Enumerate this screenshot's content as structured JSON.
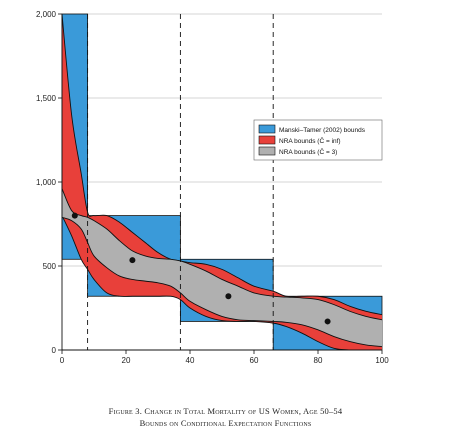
{
  "chart_data": {
    "type": "area",
    "title": "",
    "xlabel": "",
    "ylabel": "",
    "xlim": [
      0,
      100
    ],
    "ylim": [
      0,
      2000
    ],
    "x_ticks": [
      0,
      20,
      40,
      60,
      80,
      100
    ],
    "y_ticks": [
      0,
      500,
      1000,
      1500,
      2000
    ],
    "y_tick_labels": [
      "0",
      "500",
      "1,000",
      "1,500",
      "2,000"
    ],
    "grid": "horizontal",
    "legend_position": "right",
    "vertical_dashed_lines_x": [
      8,
      37,
      66
    ],
    "series": [
      {
        "name": "Manski–Tamer (2002) bounds",
        "color": "#3a9ad9",
        "steps": [
          {
            "x": [
              0,
              8
            ],
            "lower": 540,
            "upper": 2000
          },
          {
            "x": [
              8,
              37
            ],
            "lower": 320,
            "upper": 800
          },
          {
            "x": [
              37,
              66
            ],
            "lower": 170,
            "upper": 540
          },
          {
            "x": [
              66,
              100
            ],
            "lower": 0,
            "upper": 320
          }
        ]
      },
      {
        "name": "NRA bounds (C̄ = inf)",
        "color": "#e8403a",
        "x": [
          0,
          3,
          6,
          8,
          10,
          14,
          18,
          22,
          26,
          30,
          34,
          37,
          40,
          45,
          50,
          55,
          60,
          66,
          70,
          75,
          80,
          85,
          90,
          95,
          100
        ],
        "upper": [
          2000,
          1400,
          1050,
          820,
          800,
          800,
          760,
          700,
          640,
          580,
          540,
          530,
          520,
          510,
          480,
          430,
          380,
          350,
          320,
          320,
          320,
          300,
          260,
          230,
          210
        ],
        "lower": [
          800,
          680,
          540,
          480,
          420,
          340,
          320,
          320,
          320,
          320,
          320,
          300,
          250,
          200,
          175,
          170,
          170,
          160,
          140,
          100,
          50,
          10,
          0,
          0,
          0
        ]
      },
      {
        "name": "NRA bounds (C̄ = 3)",
        "color": "#b0b0b0",
        "x": [
          0,
          3,
          6,
          8,
          10,
          14,
          18,
          22,
          26,
          30,
          34,
          37,
          40,
          45,
          50,
          55,
          60,
          66,
          70,
          75,
          80,
          85,
          90,
          95,
          100
        ],
        "upper": [
          960,
          830,
          800,
          790,
          770,
          720,
          650,
          590,
          560,
          545,
          540,
          530,
          510,
          470,
          420,
          380,
          340,
          320,
          315,
          310,
          300,
          270,
          230,
          200,
          180
        ],
        "lower": [
          790,
          770,
          720,
          640,
          560,
          490,
          440,
          420,
          410,
          400,
          380,
          340,
          290,
          240,
          200,
          180,
          175,
          170,
          165,
          150,
          120,
          80,
          50,
          30,
          20
        ]
      }
    ],
    "points": [
      {
        "x": 4,
        "y": 800
      },
      {
        "x": 22,
        "y": 535
      },
      {
        "x": 52,
        "y": 320
      },
      {
        "x": 83,
        "y": 170
      }
    ]
  },
  "caption": {
    "line1": "Figure 3. Change in Total Mortality of US Women, Age 50–54",
    "line2": "Bounds on Conditional Expectation Functions"
  },
  "legend": {
    "items": [
      {
        "label": "Manski–Tamer (2002) bounds",
        "color": "#3a9ad9"
      },
      {
        "label": "NRA bounds (C̄ = inf)",
        "color": "#e8403a"
      },
      {
        "label": "NRA bounds (C̄ = 3)",
        "color": "#b0b0b0"
      }
    ]
  }
}
